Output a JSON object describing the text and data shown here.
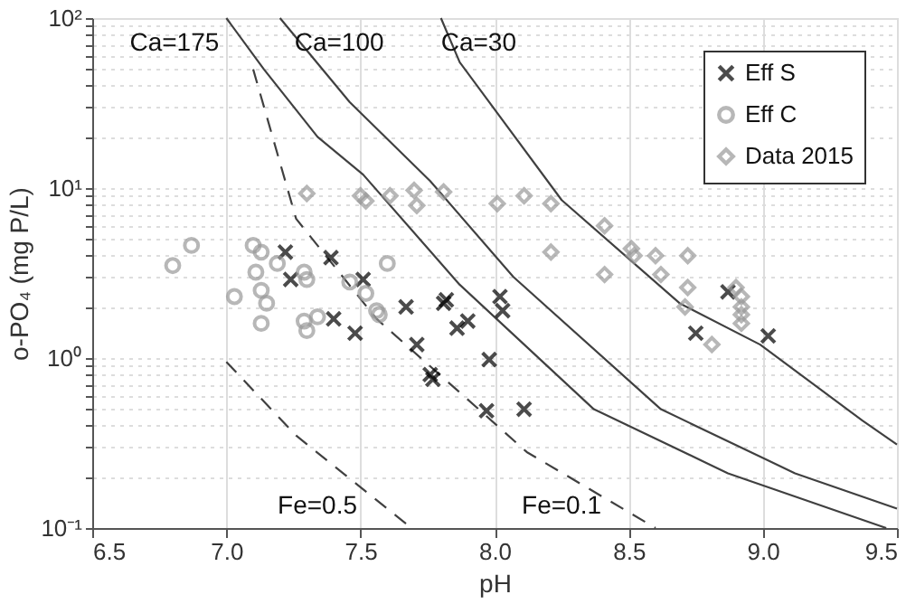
{
  "chart_data": {
    "type": "scatter",
    "xlabel": "pH",
    "ylabel": "o-PO₄ (mg P/L)",
    "xlim": [
      6.5,
      9.5
    ],
    "xticks": [
      {
        "value": 6.5,
        "label": "6.5"
      },
      {
        "value": 7,
        "label": "7.0"
      },
      {
        "value": 7.5,
        "label": "7.5"
      },
      {
        "value": 8,
        "label": "8.0"
      },
      {
        "value": 8.5,
        "label": "8.5"
      },
      {
        "value": 9,
        "label": "9.0"
      },
      {
        "value": 9.5,
        "label": "9.5"
      }
    ],
    "log": true,
    "ylim": [
      0.1,
      100
    ],
    "yticks": [
      {
        "value": 0.1,
        "label": "10⁻¹"
      },
      {
        "value": 0.2,
        "label": null
      },
      {
        "value": 0.3,
        "label": null
      },
      {
        "value": 0.4,
        "label": null
      },
      {
        "value": 0.5,
        "label": null
      },
      {
        "value": 0.6,
        "label": null
      },
      {
        "value": 0.7,
        "label": null
      },
      {
        "value": 0.8,
        "label": null
      },
      {
        "value": 0.9,
        "label": null
      },
      {
        "value": 1,
        "label": "10⁰"
      },
      {
        "value": 2,
        "label": null
      },
      {
        "value": 3,
        "label": null
      },
      {
        "value": 4,
        "label": null
      },
      {
        "value": 5,
        "label": null
      },
      {
        "value": 6,
        "label": null
      },
      {
        "value": 7,
        "label": null
      },
      {
        "value": 8,
        "label": null
      },
      {
        "value": 9,
        "label": null
      },
      {
        "value": 10,
        "label": "10¹"
      },
      {
        "value": 20,
        "label": null
      },
      {
        "value": 30,
        "label": null
      },
      {
        "value": 40,
        "label": null
      },
      {
        "value": 50,
        "label": null
      },
      {
        "value": 60,
        "label": null
      },
      {
        "value": 70,
        "label": null
      },
      {
        "value": 80,
        "label": null
      },
      {
        "value": 90,
        "label": null
      },
      {
        "value": 100,
        "label": "10²"
      }
    ],
    "grid": true,
    "legend": "top right",
    "series": [
      {
        "name": "Ca=175",
        "type": "line",
        "color": "#404040",
        "line_style": "solid",
        "x": [
          7.0,
          7.14,
          7.34,
          7.51,
          7.87,
          8.37,
          8.87,
          9.46
        ],
        "values": [
          100,
          50,
          20,
          12,
          2.7,
          0.5,
          0.21,
          0.1
        ]
      },
      {
        "name": "Ca=100",
        "type": "line",
        "color": "#404040",
        "line_style": "solid",
        "x": [
          7.2,
          7.46,
          7.76,
          8.07,
          8.62,
          9.12,
          9.5
        ],
        "values": [
          100,
          32,
          11,
          3.0,
          0.5,
          0.21,
          0.13
        ]
      },
      {
        "name": "Ca=30",
        "type": "line",
        "color": "#404040",
        "line_style": "solid",
        "x": [
          7.8,
          7.87,
          8.25,
          8.69,
          8.99,
          9.37,
          9.5
        ],
        "values": [
          100,
          55,
          8.5,
          2.1,
          1.2,
          0.43,
          0.31
        ]
      },
      {
        "name": "Fe=0.5",
        "type": "line",
        "color": "#404040",
        "line_style": "dashed",
        "x": [
          7.0,
          7.26,
          7.69
        ],
        "values": [
          0.95,
          0.35,
          0.1
        ]
      },
      {
        "name": "Fe=0.1",
        "type": "line",
        "color": "#404040",
        "line_style": "dashed",
        "x": [
          7.1,
          7.26,
          7.56,
          7.96,
          8.12,
          8.6
        ],
        "values": [
          50,
          6.6,
          1.7,
          0.47,
          0.28,
          0.1
        ]
      },
      {
        "name": "Eff S",
        "marker": "cross",
        "color": "#000000",
        "x": [
          7.22,
          7.24,
          7.39,
          7.51,
          7.67,
          7.82,
          7.4,
          7.48,
          7.71,
          7.76,
          7.77,
          7.81,
          7.86,
          7.9,
          7.98,
          7.97,
          8.02,
          8.03,
          8.11,
          8.87,
          8.75,
          9.02
        ],
        "values": [
          4.2,
          2.9,
          3.9,
          2.9,
          2.0,
          2.2,
          1.7,
          1.4,
          1.2,
          0.8,
          0.75,
          2.1,
          1.5,
          1.65,
          0.98,
          0.49,
          2.3,
          1.9,
          0.5,
          2.45,
          1.4,
          1.35
        ]
      },
      {
        "name": "Eff C",
        "marker": "circle",
        "color": "#999999",
        "x": [
          6.8,
          6.87,
          7.1,
          7.13,
          7.19,
          7.11,
          7.13,
          7.03,
          7.15,
          7.29,
          7.3,
          7.46,
          7.52,
          7.6,
          7.56,
          7.13,
          7.29,
          7.3,
          7.34,
          7.57
        ],
        "values": [
          3.5,
          4.6,
          4.6,
          4.2,
          3.6,
          3.2,
          2.5,
          2.3,
          2.1,
          3.2,
          2.9,
          2.8,
          2.4,
          3.6,
          1.9,
          1.6,
          1.65,
          1.45,
          1.75,
          1.8
        ]
      },
      {
        "name": "Data 2015",
        "marker": "diamond",
        "color": "#999999",
        "x": [
          7.3,
          7.5,
          7.52,
          7.61,
          7.7,
          7.71,
          7.81,
          8.01,
          8.11,
          8.21,
          8.41,
          8.21,
          8.41,
          8.51,
          8.52,
          8.6,
          8.72,
          8.62,
          8.72,
          8.71,
          8.81,
          8.92,
          8.92,
          8.92,
          8.92,
          8.9
        ],
        "values": [
          9.3,
          9.0,
          8.4,
          9.0,
          9.7,
          7.9,
          9.5,
          8.1,
          9.0,
          8.1,
          6.0,
          4.2,
          3.1,
          4.4,
          4.0,
          4.0,
          4.0,
          3.1,
          2.6,
          2.0,
          1.2,
          2.3,
          2.0,
          1.8,
          1.6,
          2.6
        ]
      }
    ]
  }
}
